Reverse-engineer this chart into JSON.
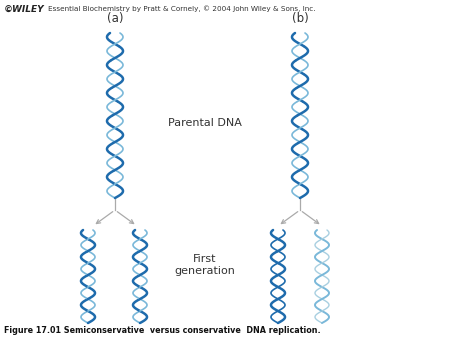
{
  "title_text": "Essential Biochemistry by Pratt & Cornely, © 2004 John Wiley & Sons, Inc.",
  "wiley_text": "©WILEY",
  "label_a": "(a)",
  "label_b": "(b)",
  "parental_label": "Parental DNA",
  "first_gen_label": "First\ngeneration",
  "caption": "Figure 17.01 Semiconservative  versus conservative  DNA replication.",
  "dna_color_dark": "#1e6bac",
  "dna_color_light": "#7ab8d9",
  "dna_color_new": "#a8cfe0",
  "arrow_color": "#aaaaaa",
  "bg_color": "#ffffff",
  "helix_amplitude": 8,
  "helix_period": 28,
  "helix_lw_thick": 1.8,
  "helix_lw_thin": 1.2
}
